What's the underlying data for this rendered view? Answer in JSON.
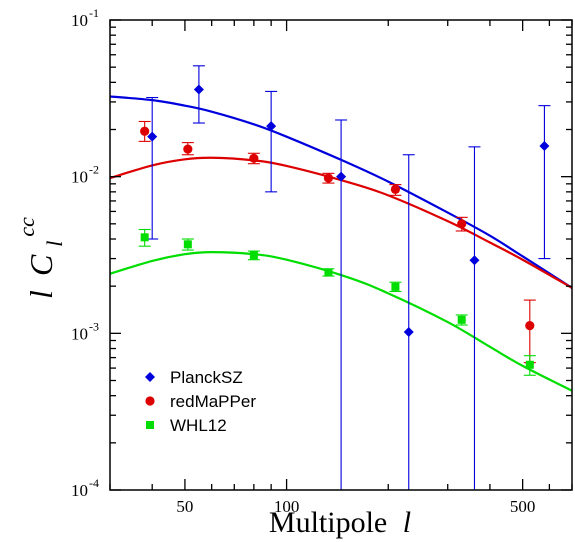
{
  "chart_data": {
    "type": "scatter",
    "title": "",
    "xlabel": "Multipole",
    "xlabel_symbol": "l",
    "ylabel_prefix": "l",
    "ylabel_symbol": "C",
    "ylabel_sub": "l",
    "ylabel_sup": "cc",
    "xscale": "log",
    "yscale": "log",
    "xlim": [
      30,
      700
    ],
    "ylim": [
      0.0001,
      0.1
    ],
    "x_ticks": [
      50,
      100,
      500
    ],
    "x_tick_labels": [
      "50",
      "100",
      "500"
    ],
    "y_ticks": [
      0.0001,
      0.001,
      0.01,
      0.1
    ],
    "y_tick_base": [
      "10",
      "10",
      "10",
      "10"
    ],
    "y_tick_exp": [
      "-4",
      "-3",
      "-2",
      "-1"
    ],
    "grid": false,
    "legend_position": "bottom-left",
    "series": [
      {
        "name": "PlanckSZ",
        "color": "#0000dd",
        "marker": "diamond",
        "points": [
          {
            "x": 40,
            "y": 0.018,
            "lo": 0.004,
            "hi": 0.032
          },
          {
            "x": 55,
            "y": 0.036,
            "lo": 0.022,
            "hi": 0.051
          },
          {
            "x": 90,
            "y": 0.021,
            "lo": 0.008,
            "hi": 0.035
          },
          {
            "x": 145,
            "y": 0.01,
            "lo": 0.0001,
            "hi": 0.023
          },
          {
            "x": 230,
            "y": 0.00102,
            "lo": 0.0001,
            "hi": 0.0138
          },
          {
            "x": 360,
            "y": 0.00293,
            "lo": 0.0001,
            "hi": 0.0155
          },
          {
            "x": 580,
            "y": 0.0157,
            "lo": 0.003,
            "hi": 0.0284
          }
        ],
        "model_x": [
          30,
          40,
          50,
          60,
          80,
          100,
          150,
          200,
          300,
          400,
          500,
          700
        ],
        "model_y": [
          0.0325,
          0.0308,
          0.0284,
          0.026,
          0.0216,
          0.018,
          0.0124,
          0.0093,
          0.0059,
          0.0042,
          0.0031,
          0.00195
        ]
      },
      {
        "name": "redMaPPer",
        "color": "#dd0000",
        "marker": "circle",
        "points": [
          {
            "x": 38,
            "y": 0.0195,
            "lo": 0.0168,
            "hi": 0.0225
          },
          {
            "x": 51,
            "y": 0.015,
            "lo": 0.0138,
            "hi": 0.0165
          },
          {
            "x": 80,
            "y": 0.0131,
            "lo": 0.0121,
            "hi": 0.0141
          },
          {
            "x": 133,
            "y": 0.0098,
            "lo": 0.0091,
            "hi": 0.0105
          },
          {
            "x": 210,
            "y": 0.0083,
            "lo": 0.0076,
            "hi": 0.0089
          },
          {
            "x": 330,
            "y": 0.005,
            "lo": 0.0045,
            "hi": 0.0055
          },
          {
            "x": 525,
            "y": 0.00112,
            "lo": 0.00065,
            "hi": 0.00163
          }
        ],
        "model_x": [
          30,
          40,
          50,
          60,
          80,
          100,
          150,
          200,
          300,
          400,
          500,
          700
        ],
        "model_y": [
          0.0098,
          0.0118,
          0.0129,
          0.0132,
          0.0127,
          0.0117,
          0.0093,
          0.0076,
          0.0052,
          0.0038,
          0.00295,
          0.00195
        ]
      },
      {
        "name": "WHL12",
        "color": "#00dd00",
        "marker": "square",
        "points": [
          {
            "x": 38,
            "y": 0.0041,
            "lo": 0.0036,
            "hi": 0.0046
          },
          {
            "x": 51,
            "y": 0.0037,
            "lo": 0.0034,
            "hi": 0.004
          },
          {
            "x": 80,
            "y": 0.00315,
            "lo": 0.00295,
            "hi": 0.00335
          },
          {
            "x": 133,
            "y": 0.00245,
            "lo": 0.00232,
            "hi": 0.00258
          },
          {
            "x": 210,
            "y": 0.00198,
            "lo": 0.00185,
            "hi": 0.00212
          },
          {
            "x": 330,
            "y": 0.00122,
            "lo": 0.00113,
            "hi": 0.00131
          },
          {
            "x": 525,
            "y": 0.00063,
            "lo": 0.00054,
            "hi": 0.00072
          }
        ],
        "model_x": [
          30,
          40,
          50,
          60,
          80,
          100,
          150,
          200,
          300,
          400,
          500,
          700
        ],
        "model_y": [
          0.0024,
          0.0029,
          0.0032,
          0.0033,
          0.0032,
          0.00295,
          0.0023,
          0.0018,
          0.00118,
          0.00082,
          0.00062,
          0.00043
        ]
      }
    ]
  }
}
